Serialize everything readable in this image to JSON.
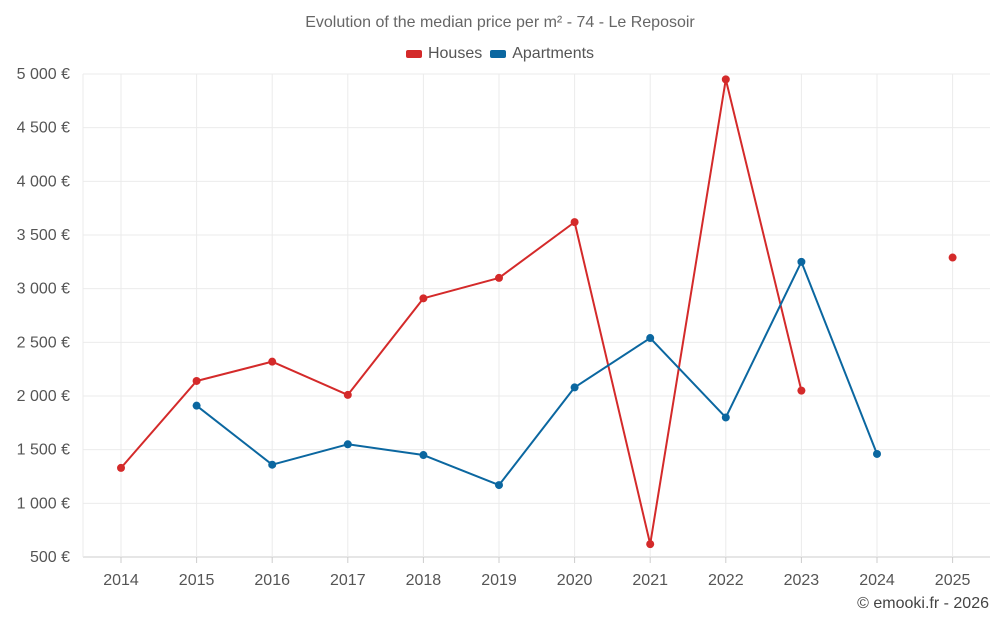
{
  "chart_data": {
    "type": "line",
    "title": "Evolution of the median price per m² - 74 - Le Reposoir",
    "categories": [
      "2014",
      "2015",
      "2016",
      "2017",
      "2018",
      "2019",
      "2020",
      "2021",
      "2022",
      "2023",
      "2024",
      "2025"
    ],
    "y_tick_labels": [
      "500 €",
      "1 000 €",
      "1 500 €",
      "2 000 €",
      "2 500 €",
      "3 000 €",
      "3 500 €",
      "4 000 €",
      "4 500 €",
      "5 000 €"
    ],
    "y_ticks": [
      500,
      1000,
      1500,
      2000,
      2500,
      3000,
      3500,
      4000,
      4500,
      5000
    ],
    "ylim": [
      500,
      5000
    ],
    "grid": true,
    "legend_position": "top-center",
    "series": [
      {
        "name": "Houses",
        "color": "#d42a2a",
        "values": [
          1330,
          2140,
          2320,
          2010,
          2910,
          3100,
          3620,
          620,
          4950,
          2050,
          null,
          3290
        ]
      },
      {
        "name": "Apartments",
        "color": "#0b67a0",
        "values": [
          null,
          1910,
          1360,
          1550,
          1450,
          1170,
          2080,
          2540,
          1800,
          3250,
          1460,
          null
        ]
      }
    ]
  },
  "credit": "© emooki.fr - 2026"
}
